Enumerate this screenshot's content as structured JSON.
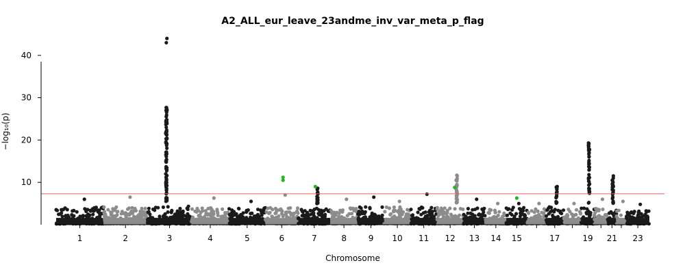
{
  "chart_data": {
    "type": "scatter",
    "title": "A2_ALL_eur_leave_23andme_inv_var_meta_p_flag",
    "xlabel": "Chromosome",
    "ylabel": "−log₁₀(p)",
    "ylim": [
      0,
      45
    ],
    "yticks": [
      10,
      20,
      30,
      40
    ],
    "significance_line": 7.3,
    "colors": {
      "odd": "#1a1a1a",
      "even": "#8c8c8c",
      "highlight": "#22b822",
      "threshold": "#e06060"
    },
    "chromosomes": [
      {
        "chr": "1",
        "label": "1",
        "baseline": 5.0,
        "peaks": [
          6.0
        ]
      },
      {
        "chr": "2",
        "label": "2",
        "baseline": 5.0,
        "peaks": [
          6.5
        ]
      },
      {
        "chr": "3",
        "label": "3",
        "baseline": 5.2,
        "peaks": [
          44.0,
          43.0,
          27.0,
          25.5,
          23.0,
          21.5,
          16.5,
          15.0,
          12.0,
          10.0,
          8.5
        ]
      },
      {
        "chr": "4",
        "label": "4",
        "baseline": 4.8,
        "peaks": [
          6.3
        ]
      },
      {
        "chr": "5",
        "label": "5",
        "baseline": 4.8,
        "peaks": [
          5.5
        ]
      },
      {
        "chr": "6",
        "label": "6",
        "baseline": 4.8,
        "peaks": [
          7.0
        ],
        "highlight": [
          11.2,
          10.5
        ]
      },
      {
        "chr": "7",
        "label": "7",
        "baseline": 4.8,
        "peaks": [
          8.6
        ],
        "highlight": [
          9.0
        ]
      },
      {
        "chr": "8",
        "label": "8",
        "baseline": 4.8,
        "peaks": [
          6.0
        ]
      },
      {
        "chr": "9",
        "label": "9",
        "baseline": 5.0,
        "peaks": [
          6.5
        ]
      },
      {
        "chr": "10",
        "label": "10",
        "baseline": 5.0,
        "peaks": [
          5.5
        ]
      },
      {
        "chr": "11",
        "label": "11",
        "baseline": 5.0,
        "peaks": [
          7.2
        ]
      },
      {
        "chr": "12",
        "label": "12",
        "baseline": 5.0,
        "peaks": [
          11.7,
          10.5,
          9.5,
          8.0
        ],
        "highlight": [
          8.8
        ]
      },
      {
        "chr": "13",
        "label": "13",
        "baseline": 5.0,
        "peaks": [
          6.0
        ]
      },
      {
        "chr": "14",
        "label": "14",
        "baseline": 4.5,
        "peaks": [
          5.0
        ]
      },
      {
        "chr": "15",
        "label": "15",
        "baseline": 5.0,
        "peaks": [
          5.0
        ],
        "highlight": [
          6.3
        ]
      },
      {
        "chr": "16",
        "label": "",
        "baseline": 4.5,
        "peaks": [
          5.0
        ]
      },
      {
        "chr": "17",
        "label": "17",
        "baseline": 5.0,
        "peaks": [
          9.0,
          7.5
        ]
      },
      {
        "chr": "18",
        "label": "",
        "baseline": 4.5,
        "peaks": [
          5.0
        ]
      },
      {
        "chr": "19",
        "label": "19",
        "baseline": 5.0,
        "peaks": [
          19.3,
          18.8,
          10.2,
          8.5
        ]
      },
      {
        "chr": "20",
        "label": "",
        "baseline": 4.5,
        "peaks": [
          6.0
        ]
      },
      {
        "chr": "21",
        "label": "21",
        "baseline": 5.0,
        "peaks": [
          11.5,
          10.5,
          9.0,
          7.5
        ]
      },
      {
        "chr": "22",
        "label": "",
        "baseline": 4.5,
        "peaks": [
          5.5
        ]
      },
      {
        "chr": "23",
        "label": "23",
        "baseline": 4.0,
        "peaks": [
          4.8
        ]
      }
    ]
  }
}
